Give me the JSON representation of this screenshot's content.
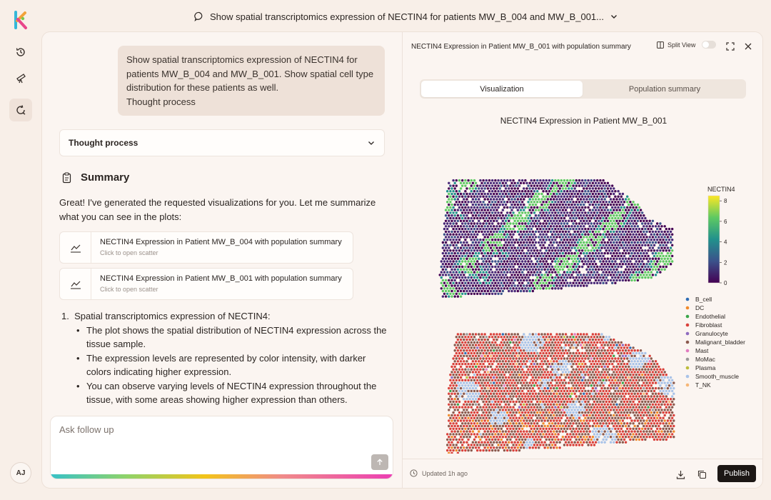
{
  "app": {
    "title": "Show spatial transcriptomics expression of NECTIN4 for patients MW_B_004 and MW_B_001...",
    "user_initials": "AJ"
  },
  "chat": {
    "user_message": "Show spatial transcriptomics expression of NECTIN4 for patients MW_B_004 and MW_B_001. Show spatial cell type distribution for these patients as well.",
    "user_message_tail": "Thought process",
    "thought_label": "Thought process",
    "summary_title": "Summary",
    "intro": "Great! I've generated the requested visualizations for you. Let me summarize what you can see in the plots:",
    "plot_cards": [
      {
        "title": "NECTIN4 Expression in Patient MW_B_004 with population summary",
        "subtitle": "Click to open scatter"
      },
      {
        "title": "NECTIN4 Expression in Patient MW_B_001 with population summary",
        "subtitle": "Click to open scatter"
      }
    ],
    "answer_heading": "1.  Spatial transcriptomics expression of NECTIN4:",
    "bullets": [
      "The plot shows the spatial distribution of NECTIN4 expression across the tissue sample.",
      "The expression levels are represented by color intensity, with darker colors indicating higher expression.",
      "You can observe varying levels of NECTIN4 expression throughout the tissue, with some areas showing higher expression than others."
    ],
    "ask_placeholder": "Ask follow up"
  },
  "panel": {
    "header": "NECTIN4 Expression in Patient MW_B_001 with population summary",
    "split_view_label": "Split View",
    "tabs": [
      "Visualization",
      "Population summary"
    ],
    "updated": "Updated 1h ago",
    "publish": "Publish"
  },
  "chart_data": [
    {
      "type": "scatter",
      "title": "NECTIN4 Expression in Patient MW_B_001",
      "colorbar": {
        "label": "NECTIN4",
        "ticks": [
          0,
          2,
          4,
          6,
          8
        ],
        "range": [
          0,
          8.5
        ],
        "colormap": "viridis"
      }
    },
    {
      "type": "scatter",
      "legend": {
        "placement": "right",
        "entries": [
          {
            "name": "B_cell",
            "color": "#2f6db5"
          },
          {
            "name": "DC",
            "color": "#f08a2c"
          },
          {
            "name": "Endothelial",
            "color": "#3aa64a"
          },
          {
            "name": "Fibroblast",
            "color": "#d9413b"
          },
          {
            "name": "Granulocyte",
            "color": "#8e6bbf"
          },
          {
            "name": "Malignant_bladder",
            "color": "#8b5a4e"
          },
          {
            "name": "Mast",
            "color": "#e27cc0"
          },
          {
            "name": "MoMac",
            "color": "#9a9a9a"
          },
          {
            "name": "Plasma",
            "color": "#bdbd3c"
          },
          {
            "name": "Smooth_muscle",
            "color": "#a9c3e8"
          },
          {
            "name": "T_NK",
            "color": "#f6b778"
          }
        ]
      }
    }
  ]
}
